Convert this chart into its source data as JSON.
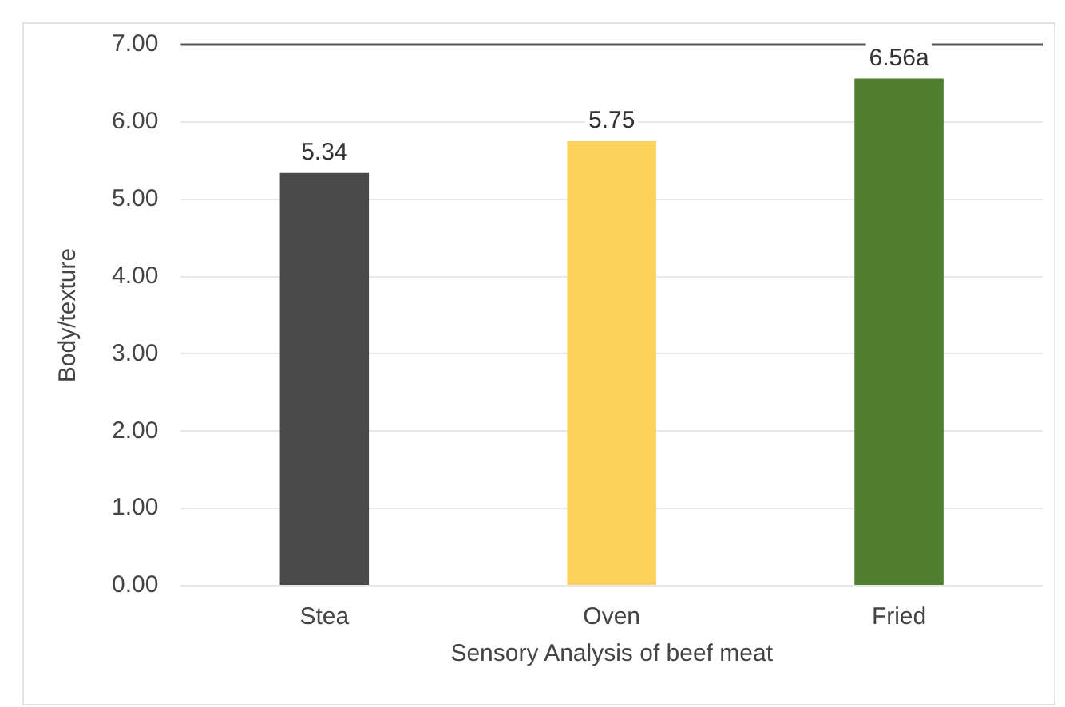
{
  "chart_data": {
    "type": "bar",
    "xlabel": "Sensory Analysis of beef meat",
    "ylabel": "Body/texture",
    "categories": [
      "Stea",
      "Oven",
      "Fried"
    ],
    "values": [
      5.34,
      5.75,
      6.56
    ],
    "colors": [
      "#4a4a4a",
      "#fcd25a",
      "#4e7e2e"
    ],
    "value_labels": [
      "5.34",
      "5.75",
      "6.56a"
    ],
    "ylim": [
      0,
      7
    ],
    "yticks": [
      {
        "value": 0,
        "label": "0.00"
      },
      {
        "value": 1,
        "label": "1.00"
      },
      {
        "value": 2,
        "label": "2.00"
      },
      {
        "value": 3,
        "label": "3.00"
      },
      {
        "value": 4,
        "label": "4.00"
      },
      {
        "value": 5,
        "label": "5.00"
      },
      {
        "value": 6,
        "label": "6.00"
      },
      {
        "value": 7,
        "label": "7.00"
      }
    ],
    "ref_lines": [
      {
        "axis": "y",
        "value": 7,
        "color": "#555555"
      }
    ],
    "grid": "y",
    "legend": false
  }
}
